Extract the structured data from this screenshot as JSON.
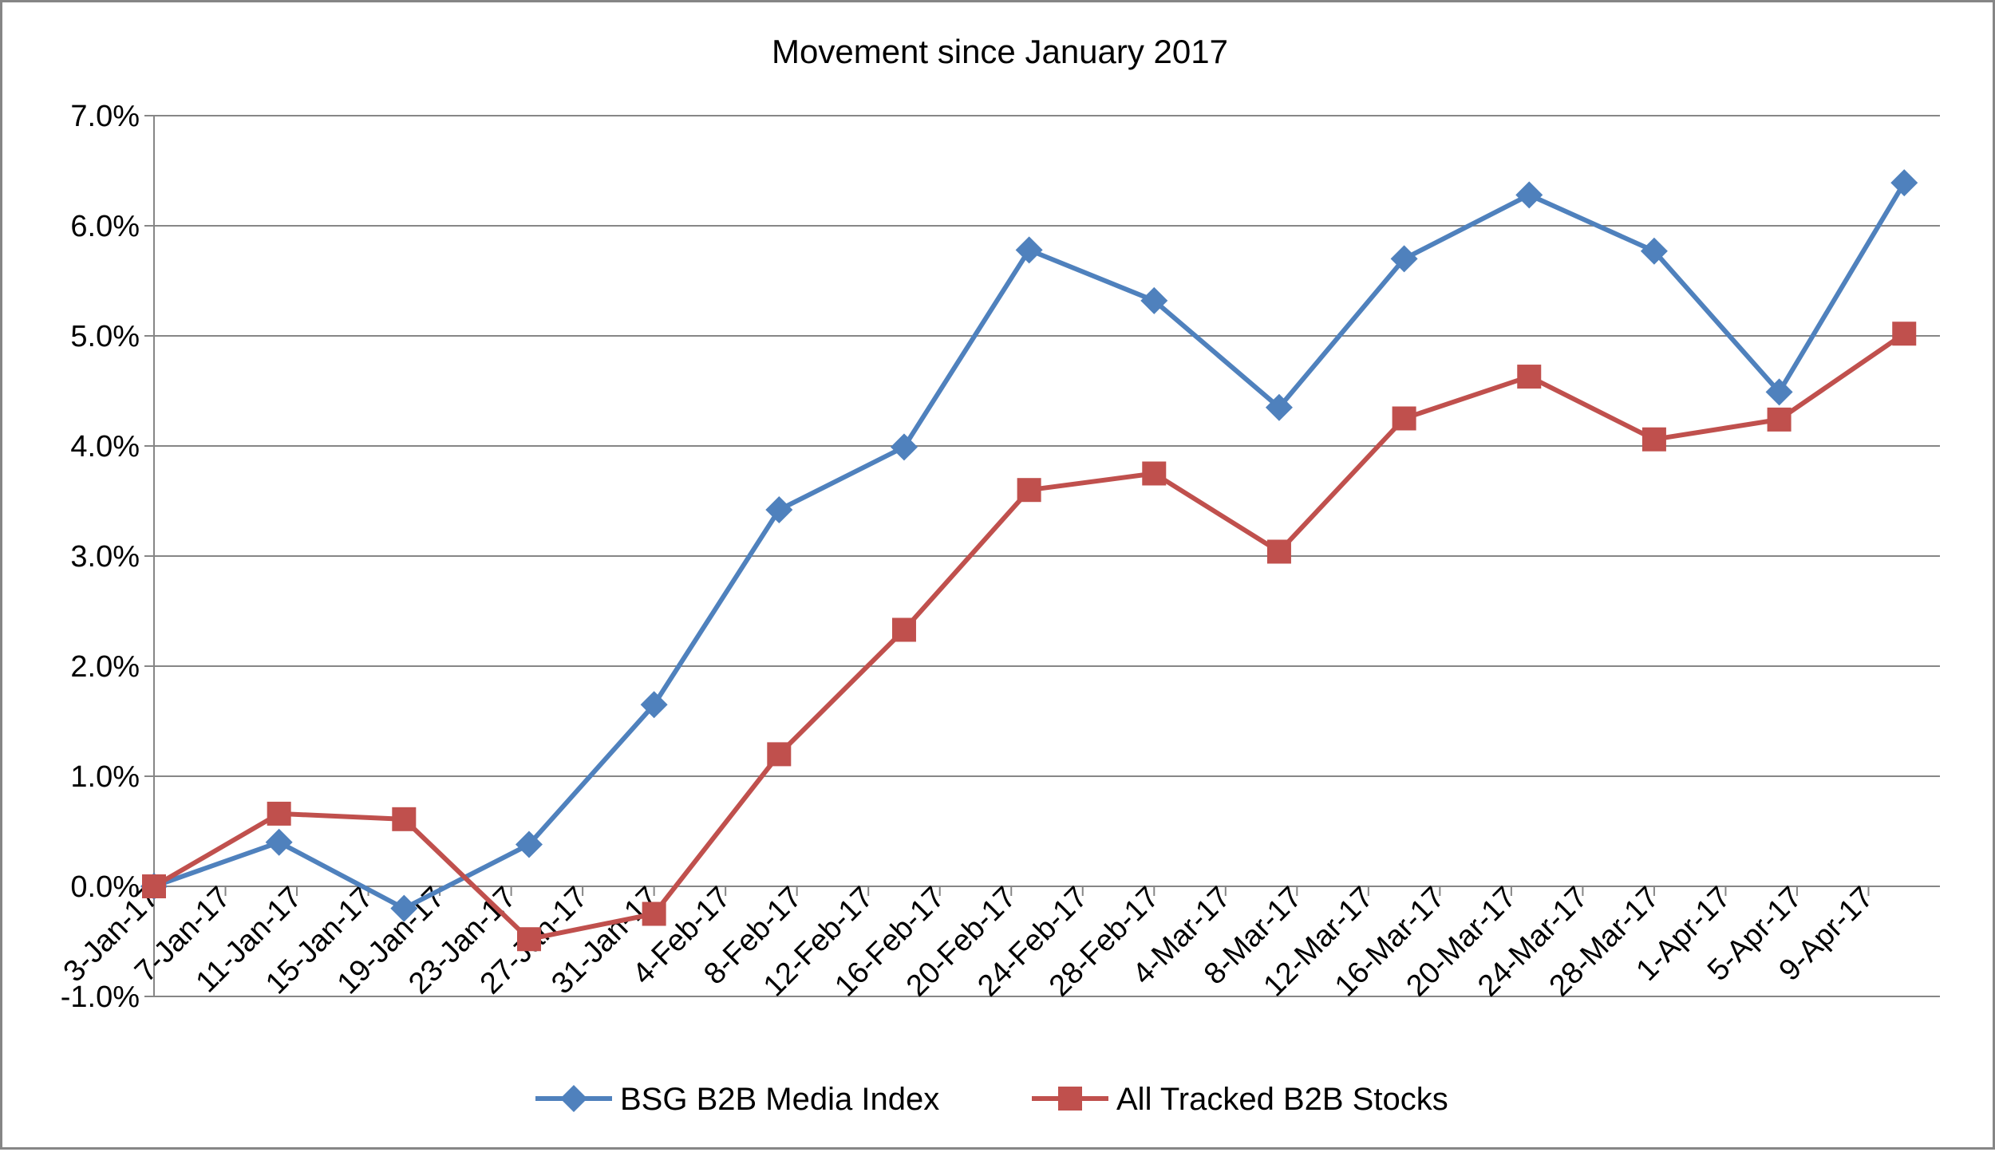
{
  "chart_data": {
    "type": "line",
    "title": "Movement since January 2017",
    "xlabel": "",
    "ylabel": "",
    "ylim": [
      -0.01,
      0.07
    ],
    "y_ticks": [
      "7.0%",
      "6.0%",
      "5.0%",
      "4.0%",
      "3.0%",
      "2.0%",
      "1.0%",
      "0.0%",
      "-1.0%"
    ],
    "y_tick_values": [
      0.07,
      0.06,
      0.05,
      0.04,
      0.03,
      0.02,
      0.01,
      0.0,
      -0.01
    ],
    "x_ticks": [
      "3-Jan-17",
      "7-Jan-17",
      "11-Jan-17",
      "15-Jan-17",
      "19-Jan-17",
      "23-Jan-17",
      "27-Jan-17",
      "31-Jan-17",
      "4-Feb-17",
      "8-Feb-17",
      "12-Feb-17",
      "16-Feb-17",
      "20-Feb-17",
      "24-Feb-17",
      "28-Feb-17",
      "4-Mar-17",
      "8-Mar-17",
      "12-Mar-17",
      "16-Mar-17",
      "20-Mar-17",
      "24-Mar-17",
      "28-Mar-17",
      "1-Apr-17",
      "5-Apr-17",
      "9-Apr-17"
    ],
    "x_tick_dates": [
      "2017-01-03",
      "2017-01-07",
      "2017-01-11",
      "2017-01-15",
      "2017-01-19",
      "2017-01-23",
      "2017-01-27",
      "2017-01-31",
      "2017-02-04",
      "2017-02-08",
      "2017-02-12",
      "2017-02-16",
      "2017-02-20",
      "2017-02-24",
      "2017-02-28",
      "2017-03-04",
      "2017-03-08",
      "2017-03-12",
      "2017-03-16",
      "2017-03-20",
      "2017-03-24",
      "2017-03-28",
      "2017-04-01",
      "2017-04-05",
      "2017-04-09"
    ],
    "x": [
      "2017-01-03",
      "2017-01-10",
      "2017-01-17",
      "2017-01-24",
      "2017-01-31",
      "2017-02-07",
      "2017-02-14",
      "2017-02-21",
      "2017-02-28",
      "2017-03-07",
      "2017-03-14",
      "2017-03-21",
      "2017-03-28",
      "2017-04-04",
      "2017-04-11"
    ],
    "series": [
      {
        "name": "BSG B2B Media Index",
        "color": "#4F81BD",
        "marker": "diamond",
        "values": [
          0.0,
          0.004,
          -0.002,
          0.0038,
          0.0165,
          0.0342,
          0.0399,
          0.0578,
          0.0532,
          0.0435,
          0.057,
          0.0628,
          0.0577,
          0.0449,
          0.0639
        ]
      },
      {
        "name": "All Tracked B2B Stocks",
        "color": "#C0504D",
        "marker": "square",
        "values": [
          0.0,
          0.0066,
          0.0061,
          -0.0048,
          -0.0025,
          0.012,
          0.0233,
          0.036,
          0.0375,
          0.0304,
          0.0425,
          0.0463,
          0.0406,
          0.0424,
          0.0502
        ]
      }
    ],
    "grid": true,
    "legend": "bottom"
  }
}
